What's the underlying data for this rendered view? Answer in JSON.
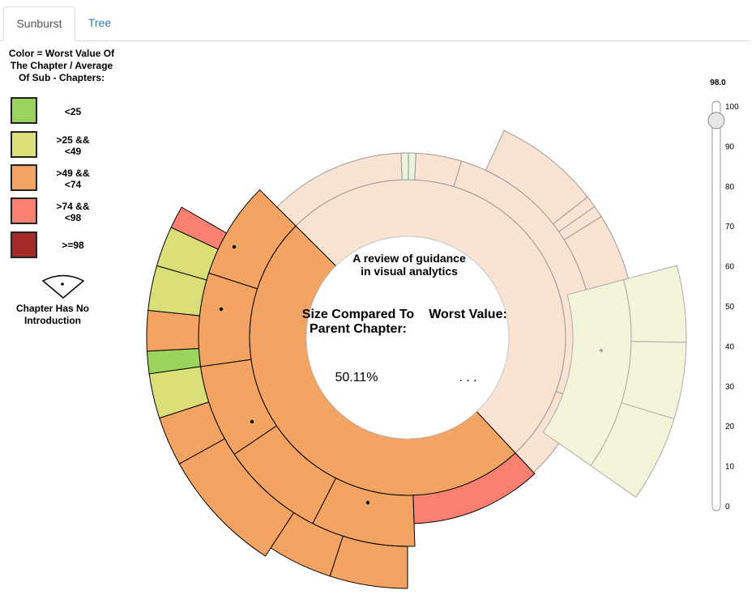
{
  "tabs": [
    {
      "label": "Sunburst",
      "active": true
    },
    {
      "label": "Tree",
      "active": false
    }
  ],
  "legend": {
    "title": "Color = Worst Value Of The Chapter / Average Of Sub - Chapters:",
    "items": [
      {
        "color": "#9bd45c",
        "line1": "<25",
        "line2": ""
      },
      {
        "color": "#dadf78",
        "line1": ">25 &&",
        "line2": "<49"
      },
      {
        "color": "#f4a462",
        "line1": ">49 &&",
        "line2": "<74"
      },
      {
        "color": "#fa8072",
        "line1": ">74 &&",
        "line2": "<98"
      },
      {
        "color": "#a52a2a",
        "line1": ">=98",
        "line2": ""
      }
    ],
    "no_intro_label": "Chapter Has No Introduction"
  },
  "center": {
    "title": "A review of guidance in visual analytics",
    "size_label": "Size Compared To Parent Chapter:",
    "size_value": "50.11%",
    "worst_label": "Worst Value:",
    "worst_value": ". . ."
  },
  "slider": {
    "value": 98.0,
    "value_label": "98.0",
    "min": 0,
    "max": 100,
    "ticks": [
      "0",
      "10",
      "20",
      "30",
      "40",
      "50",
      "60",
      "70",
      "80",
      "90",
      "100"
    ]
  }
}
